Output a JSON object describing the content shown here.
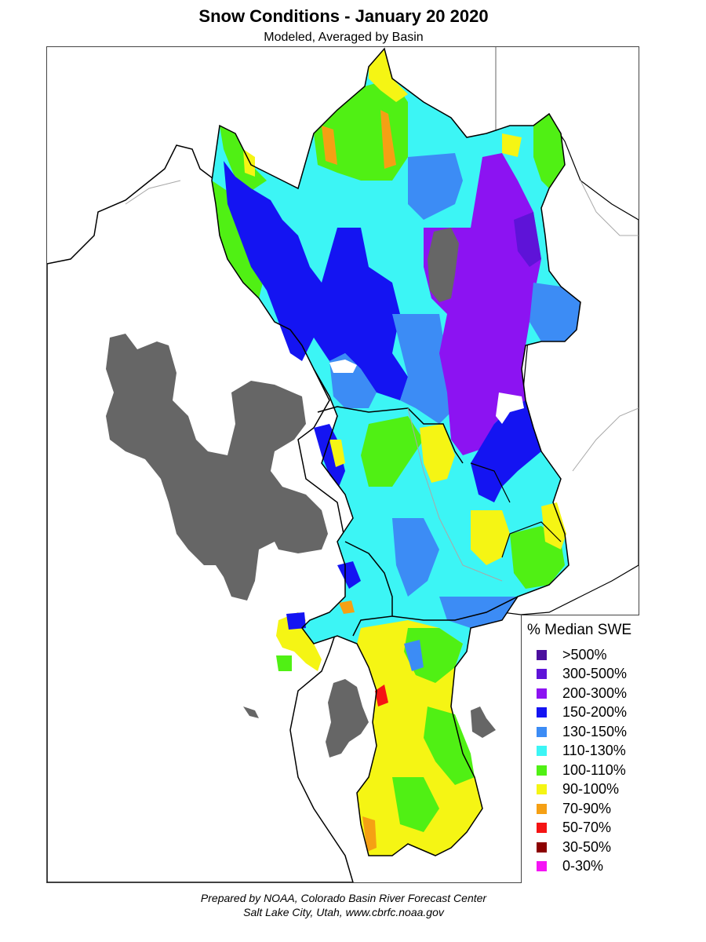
{
  "header": {
    "title": "Snow Conditions - January 20 2020",
    "subtitle": "Modeled, Averaged by Basin"
  },
  "legend": {
    "title": "% Median SWE",
    "items": [
      {
        "label": ">500%",
        "color": "#4b0f9e"
      },
      {
        "label": "300-500%",
        "color": "#5e13d8"
      },
      {
        "label": "200-300%",
        "color": "#8c13f2"
      },
      {
        "label": "150-200%",
        "color": "#1414f2"
      },
      {
        "label": "130-150%",
        "color": "#3c8cf5"
      },
      {
        "label": "110-130%",
        "color": "#3cf5f5"
      },
      {
        "label": "100-110%",
        "color": "#50f014"
      },
      {
        "label": "90-100%",
        "color": "#f5f514"
      },
      {
        "label": "70-90%",
        "color": "#f5a014"
      },
      {
        "label": "50-70%",
        "color": "#f51414"
      },
      {
        "label": "30-50%",
        "color": "#8c0000"
      },
      {
        "label": "0-30%",
        "color": "#f514f5"
      }
    ]
  },
  "map_colors": {
    "lake": "#666666",
    "unmodeled": "#ffffff",
    "outline": "#000000",
    "river": "#a8a8a8"
  },
  "credits": {
    "line1": "Prepared by NOAA, Colorado Basin River Forecast Center",
    "line2": "Salt Lake City, Utah, www.cbrfc.noaa.gov"
  }
}
